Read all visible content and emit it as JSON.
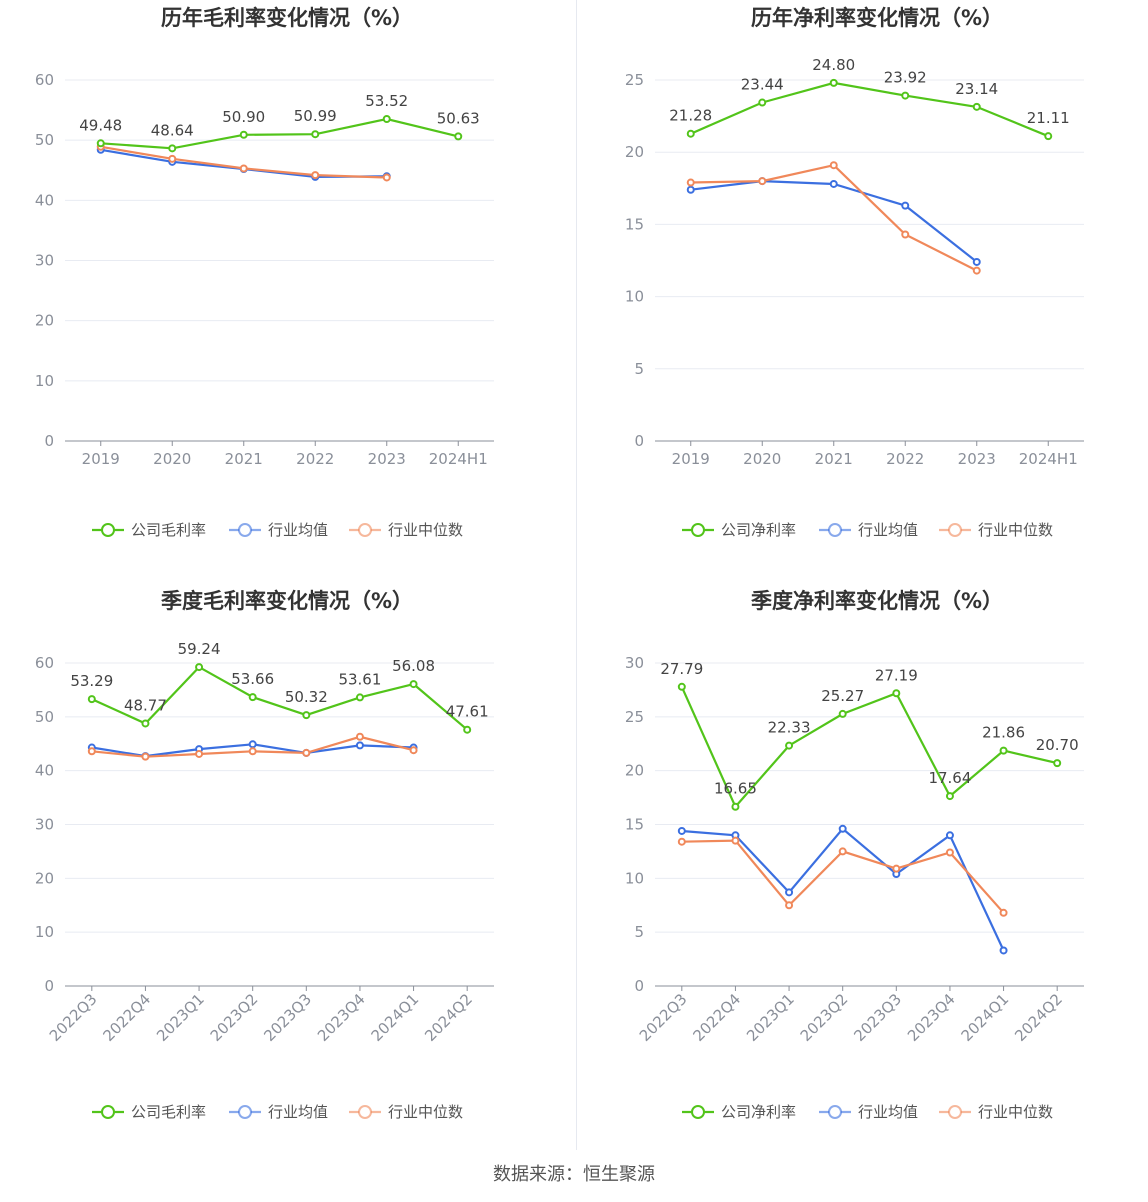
{
  "colors": {
    "company": "#52c41a",
    "avg": "#3b6fe0",
    "median": "#f0885a"
  },
  "legend": {
    "panels": [
      {
        "company": "公司毛利率",
        "avg": "行业均值",
        "median": "行业中位数"
      },
      {
        "company": "公司净利率",
        "avg": "行业均值",
        "median": "行业中位数"
      },
      {
        "company": "公司毛利率",
        "avg": "行业均值",
        "median": "行业中位数"
      },
      {
        "company": "公司净利率",
        "avg": "行业均值",
        "median": "行业中位数"
      }
    ]
  },
  "source": "数据来源：恒生聚源",
  "chart_data": [
    {
      "type": "line",
      "title": "历年毛利率变化情况（%）",
      "categories": [
        "2019",
        "2020",
        "2021",
        "2022",
        "2023",
        "2024H1"
      ],
      "ylim": [
        0,
        60
      ],
      "yticks": [
        0,
        10,
        20,
        30,
        40,
        50,
        60
      ],
      "series": [
        {
          "name": "公司毛利率",
          "key": "company",
          "labels": true,
          "values": [
            49.48,
            48.64,
            50.9,
            50.99,
            53.52,
            50.63
          ]
        },
        {
          "name": "行业均值",
          "key": "avg",
          "values": [
            48.4,
            46.4,
            45.2,
            43.9,
            44.0,
            null
          ]
        },
        {
          "name": "行业中位数",
          "key": "median",
          "values": [
            48.9,
            46.9,
            45.3,
            44.2,
            43.8,
            null
          ]
        }
      ]
    },
    {
      "type": "line",
      "title": "历年净利率变化情况（%）",
      "categories": [
        "2019",
        "2020",
        "2021",
        "2022",
        "2023",
        "2024H1"
      ],
      "ylim": [
        0,
        25
      ],
      "yticks": [
        0,
        5,
        10,
        15,
        20,
        25
      ],
      "series": [
        {
          "name": "公司净利率",
          "key": "company",
          "labels": true,
          "values": [
            21.28,
            23.44,
            24.8,
            23.92,
            23.14,
            21.11
          ]
        },
        {
          "name": "行业均值",
          "key": "avg",
          "values": [
            17.4,
            18.0,
            17.8,
            16.3,
            12.4,
            null
          ]
        },
        {
          "name": "行业中位数",
          "key": "median",
          "values": [
            17.9,
            18.0,
            19.1,
            14.3,
            11.8,
            null
          ]
        }
      ]
    },
    {
      "type": "line",
      "title": "季度毛利率变化情况（%）",
      "categories": [
        "2022Q3",
        "2022Q4",
        "2023Q1",
        "2023Q2",
        "2023Q3",
        "2023Q4",
        "2024Q1",
        "2024Q2"
      ],
      "ylim": [
        0,
        60
      ],
      "yticks": [
        0,
        10,
        20,
        30,
        40,
        50,
        60
      ],
      "series": [
        {
          "name": "公司毛利率",
          "key": "company",
          "labels": true,
          "values": [
            53.29,
            48.77,
            59.24,
            53.66,
            50.32,
            53.61,
            56.08,
            47.61
          ]
        },
        {
          "name": "行业均值",
          "key": "avg",
          "values": [
            44.3,
            42.7,
            44.0,
            44.9,
            43.3,
            44.7,
            44.3,
            null
          ]
        },
        {
          "name": "行业中位数",
          "key": "median",
          "values": [
            43.6,
            42.6,
            43.1,
            43.6,
            43.3,
            46.3,
            43.8,
            null
          ]
        }
      ]
    },
    {
      "type": "line",
      "title": "季度净利率变化情况（%）",
      "categories": [
        "2022Q3",
        "2022Q4",
        "2023Q1",
        "2023Q2",
        "2023Q3",
        "2023Q4",
        "2024Q1",
        "2024Q2"
      ],
      "ylim": [
        0,
        30
      ],
      "yticks": [
        0,
        5,
        10,
        15,
        20,
        25,
        30
      ],
      "series": [
        {
          "name": "公司净利率",
          "key": "company",
          "labels": true,
          "values": [
            27.79,
            16.65,
            22.33,
            25.27,
            27.19,
            17.64,
            21.86,
            20.7
          ]
        },
        {
          "name": "行业均值",
          "key": "avg",
          "values": [
            14.4,
            14.0,
            8.7,
            14.6,
            10.4,
            14.0,
            3.3,
            null
          ]
        },
        {
          "name": "行业中位数",
          "key": "median",
          "values": [
            13.4,
            13.5,
            7.5,
            12.5,
            10.9,
            12.4,
            6.8,
            null
          ]
        }
      ]
    }
  ]
}
